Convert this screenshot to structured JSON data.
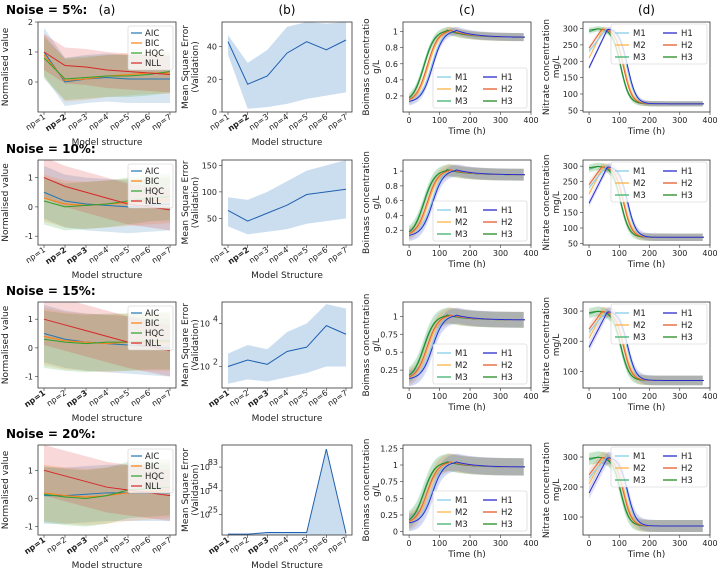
{
  "colors": {
    "AIC": "#1f77b4",
    "BIC": "#ff7f0e",
    "HQC": "#2ca02c",
    "NLL": "#d62728",
    "M1": "#87ceeb",
    "M2": "#ffb347",
    "M3": "#3cb371",
    "H1": "#2b2bcc",
    "H2": "#e65c2e",
    "H3": "#228b22",
    "mse": "#2060b0",
    "mse_band": "#a9c8e6"
  },
  "column_labels": [
    "(a)",
    "(b)",
    "(c)",
    "(d)"
  ],
  "row_labels": [
    "Noise = 5%:",
    "Noise = 10%:",
    "Noise = 15%:",
    "Noise = 20%:"
  ],
  "chart_data": [
    {
      "row": 0,
      "col": 0,
      "type": "line",
      "xlabel": "Model structure",
      "ylabel": "Normalised value",
      "categories": [
        "np=1",
        "np=2",
        "np=3",
        "np=4",
        "np=5",
        "np=6",
        "np=7"
      ],
      "bold": [
        1
      ],
      "ylim": [
        -1,
        2
      ],
      "yticks": [
        0,
        1,
        2
      ],
      "series": [
        {
          "name": "AIC",
          "values": [
            1.0,
            0.0,
            0.1,
            0.15,
            0.1,
            0.1,
            0.1
          ],
          "band": 0.8
        },
        {
          "name": "BIC",
          "values": [
            0.9,
            0.05,
            0.1,
            0.2,
            0.25,
            0.3,
            0.3
          ],
          "band": 0.7
        },
        {
          "name": "HQC",
          "values": [
            0.8,
            0.1,
            0.15,
            0.2,
            0.2,
            0.25,
            0.35
          ],
          "band": 0.7
        },
        {
          "name": "NLL",
          "values": [
            1.0,
            0.55,
            0.5,
            0.4,
            0.35,
            0.3,
            0.25
          ],
          "band": 0.6
        }
      ]
    },
    {
      "row": 0,
      "col": 1,
      "type": "area",
      "xlabel": "Model structure",
      "ylabel": "Mean Square Error (Validation)",
      "categories": [
        "np=1",
        "np=2",
        "np=3",
        "np=4",
        "np=5",
        "np=6",
        "np=7"
      ],
      "bold": [
        1
      ],
      "ylim": [
        0,
        55
      ],
      "yticks": [
        0,
        20,
        40
      ],
      "log": false,
      "values": [
        43,
        17,
        22,
        36,
        43,
        38,
        44
      ],
      "lower": [
        35,
        2,
        3,
        5,
        8,
        10,
        12
      ],
      "upper": [
        47,
        30,
        38,
        52,
        55,
        54,
        55
      ]
    },
    {
      "row": 0,
      "col": 2,
      "type": "line",
      "xlabel": "Time (h)",
      "ylabel": "Boimass concentratio g/L",
      "xlim": [
        -20,
        400
      ],
      "xticks": [
        0,
        100,
        200,
        300,
        400
      ],
      "ylim": [
        0,
        1.12
      ],
      "yticks": [
        0.2,
        0.4,
        0.6,
        0.8,
        1.0
      ],
      "legend": [
        "M1",
        "M2",
        "M3",
        "H1",
        "H2",
        "H3"
      ],
      "kind": "biomass",
      "end": 0.93,
      "peak": 1.02,
      "band": 0.05
    },
    {
      "row": 0,
      "col": 3,
      "type": "line",
      "xlabel": "Time (h)",
      "ylabel": "Nitrate concentration mg/L",
      "xlim": [
        -20,
        400
      ],
      "xticks": [
        0,
        100,
        200,
        300,
        400
      ],
      "ylim": [
        45,
        320
      ],
      "yticks": [
        50,
        100,
        150,
        200,
        250,
        300
      ],
      "legend": [
        "M1",
        "M2",
        "M3",
        "H1",
        "H2",
        "H3"
      ],
      "kind": "nitrate",
      "band": 8
    },
    {
      "row": 1,
      "col": 0,
      "type": "line",
      "xlabel": "Model structure",
      "ylabel": "Normalised value",
      "categories": [
        "np=1",
        "np=2",
        "np=3",
        "np=4",
        "np=5",
        "np=6",
        "np=7"
      ],
      "bold": [
        1,
        2
      ],
      "ylim": [
        -1.3,
        1.6
      ],
      "yticks": [
        -1,
        0,
        1
      ],
      "series": [
        {
          "name": "AIC",
          "values": [
            0.5,
            0.2,
            0.1,
            0.05,
            0.0,
            0.05,
            0.1
          ],
          "band": 0.9
        },
        {
          "name": "BIC",
          "values": [
            0.3,
            0.1,
            0.05,
            0.1,
            0.15,
            0.2,
            0.25
          ],
          "band": 0.8
        },
        {
          "name": "HQC",
          "values": [
            0.2,
            0.0,
            0.05,
            0.1,
            0.2,
            0.3,
            0.35
          ],
          "band": 0.8
        },
        {
          "name": "NLL",
          "values": [
            1.0,
            0.7,
            0.5,
            0.3,
            0.1,
            0.0,
            -0.1
          ],
          "band": 0.7
        }
      ]
    },
    {
      "row": 1,
      "col": 1,
      "type": "area",
      "xlabel": "Model Structure",
      "ylabel": "Mean Square Error (Validation)",
      "categories": [
        "np=1",
        "np=2",
        "np=3",
        "np=4",
        "np=5",
        "np=6",
        "np=7"
      ],
      "bold": [
        1
      ],
      "ylim": [
        0,
        160
      ],
      "yticks": [
        50,
        100,
        150
      ],
      "log": false,
      "values": [
        65,
        45,
        60,
        75,
        95,
        100,
        105
      ],
      "lower": [
        35,
        20,
        25,
        30,
        40,
        45,
        50
      ],
      "upper": [
        90,
        85,
        100,
        120,
        140,
        150,
        160
      ]
    },
    {
      "row": 1,
      "col": 2,
      "type": "line",
      "xlabel": "Time (h)",
      "ylabel": "Boimass concentration g/L",
      "xlim": [
        -20,
        400
      ],
      "xticks": [
        0,
        100,
        200,
        300,
        400
      ],
      "ylim": [
        0,
        1.15
      ],
      "yticks": [
        0.2,
        0.4,
        0.6,
        0.8,
        1.0
      ],
      "legend": [
        "M1",
        "M2",
        "M3",
        "H1",
        "H2",
        "H3"
      ],
      "kind": "biomass",
      "end": 0.95,
      "peak": 1.02,
      "band": 0.08
    },
    {
      "row": 1,
      "col": 3,
      "type": "line",
      "xlabel": "Time (h)",
      "ylabel": "Nitrate concentration mg/L",
      "xlim": [
        -20,
        400
      ],
      "xticks": [
        0,
        100,
        200,
        300,
        400
      ],
      "ylim": [
        45,
        320
      ],
      "yticks": [
        50,
        100,
        150,
        200,
        250,
        300
      ],
      "legend": [
        "M1",
        "M2",
        "M3",
        "H1",
        "H2",
        "H3"
      ],
      "kind": "nitrate",
      "band": 12
    },
    {
      "row": 2,
      "col": 0,
      "type": "line",
      "xlabel": "Model structure",
      "ylabel": "Normalised value",
      "categories": [
        "np=1",
        "np=2",
        "np=3",
        "np=4",
        "np=5",
        "np=6",
        "np=7"
      ],
      "bold": [
        0,
        2
      ],
      "ylim": [
        -1.4,
        1.6
      ],
      "yticks": [
        -1,
        0,
        1
      ],
      "series": [
        {
          "name": "AIC",
          "values": [
            0.5,
            0.3,
            0.2,
            0.15,
            0.1,
            0.05,
            0.0
          ],
          "band": 1.0
        },
        {
          "name": "BIC",
          "values": [
            0.4,
            0.25,
            0.2,
            0.15,
            0.2,
            0.2,
            0.2
          ],
          "band": 1.0
        },
        {
          "name": "HQC",
          "values": [
            0.3,
            0.2,
            0.15,
            0.2,
            0.2,
            0.25,
            0.25
          ],
          "band": 1.0
        },
        {
          "name": "NLL",
          "values": [
            1.0,
            0.8,
            0.6,
            0.4,
            0.2,
            0.05,
            -0.1
          ],
          "band": 0.9
        }
      ]
    },
    {
      "row": 2,
      "col": 1,
      "type": "area",
      "xlabel": "Model structure",
      "ylabel": "Mean Square Error (Validation)",
      "categories": [
        "np=1",
        "np=2",
        "np=3",
        "np=4",
        "np=5",
        "np=6",
        "np=7"
      ],
      "bold": [
        0,
        2
      ],
      "log": true,
      "ylim": [
        1,
        5
      ],
      "yticks": [
        2,
        4
      ],
      "tick_prefix": "10",
      "values": [
        2.0,
        2.3,
        2.1,
        2.7,
        2.9,
        3.9,
        3.5
      ],
      "lower": [
        1.2,
        1.4,
        1.3,
        1.5,
        1.7,
        2.0,
        2.0
      ],
      "upper": [
        2.6,
        3.0,
        2.8,
        3.6,
        4.0,
        4.9,
        4.7
      ]
    },
    {
      "row": 2,
      "col": 2,
      "type": "line",
      "xlabel": "Time (h)",
      "ylabel": "Boimass concentration g/L",
      "xlim": [
        -20,
        400
      ],
      "xticks": [
        0,
        100,
        200,
        300,
        400
      ],
      "ylim": [
        0,
        1.2
      ],
      "yticks": [
        0.25,
        0.5,
        0.75,
        1.0
      ],
      "legend": [
        "M1",
        "M2",
        "M3",
        "H1",
        "H2",
        "H3"
      ],
      "kind": "biomass",
      "end": 0.95,
      "peak": 1.02,
      "band": 0.11
    },
    {
      "row": 2,
      "col": 3,
      "type": "line",
      "xlabel": "Time (h)",
      "ylabel": "Nitrate concentration mg/L",
      "xlim": [
        -20,
        400
      ],
      "xticks": [
        0,
        100,
        200,
        300,
        400
      ],
      "ylim": [
        45,
        330
      ],
      "yticks": [
        100,
        200,
        300
      ],
      "legend": [
        "M1",
        "M2",
        "M3",
        "H1",
        "H2",
        "H3"
      ],
      "kind": "nitrate",
      "band": 16
    },
    {
      "row": 3,
      "col": 0,
      "type": "line",
      "xlabel": "Model structure",
      "ylabel": "Normalised value",
      "categories": [
        "np=1",
        "np=2",
        "np=3",
        "np=4",
        "np=5",
        "np=6",
        "np=7"
      ],
      "bold": [
        0,
        2
      ],
      "ylim": [
        -1.3,
        1.9
      ],
      "yticks": [
        -1,
        0,
        1
      ],
      "series": [
        {
          "name": "AIC",
          "values": [
            0.1,
            0.1,
            0.15,
            0.2,
            0.2,
            0.2,
            0.2
          ],
          "band": 1.0
        },
        {
          "name": "BIC",
          "values": [
            0.2,
            0.1,
            0.05,
            0.1,
            0.2,
            0.25,
            0.3
          ],
          "band": 1.0
        },
        {
          "name": "HQC",
          "values": [
            0.15,
            0.05,
            0.0,
            0.1,
            0.3,
            0.35,
            0.4
          ],
          "band": 1.0
        },
        {
          "name": "NLL",
          "values": [
            1.0,
            0.8,
            0.6,
            0.4,
            0.3,
            0.2,
            0.1
          ],
          "band": 0.9
        }
      ]
    },
    {
      "row": 3,
      "col": 1,
      "type": "area",
      "xlabel": "Model Structure",
      "ylabel": "Mean Square Error (Validation)",
      "categories": [
        "np=1",
        "np=2",
        "np=3",
        "np=4",
        "np=5",
        "np=6",
        "np=7"
      ],
      "bold": [
        0,
        2
      ],
      "log": true,
      "ylim": [
        0,
        110
      ],
      "yticks": [
        25,
        54,
        83
      ],
      "tick_prefix": "10",
      "values": [
        1,
        1,
        3,
        3,
        3,
        105,
        2
      ],
      "lower": [
        0,
        0,
        0,
        0,
        0,
        0,
        0
      ],
      "upper": [
        1,
        1,
        3,
        3,
        3,
        105,
        2
      ]
    },
    {
      "row": 3,
      "col": 2,
      "type": "line",
      "xlabel": "Time (h)",
      "ylabel": "Boimass concentration g/L",
      "xlim": [
        -20,
        400
      ],
      "xticks": [
        0,
        100,
        200,
        300,
        400
      ],
      "ylim": [
        -0.05,
        1.3
      ],
      "yticks": [
        0,
        0.25,
        0.5,
        0.75,
        1.0,
        1.25
      ],
      "legend": [
        "M1",
        "M2",
        "M3",
        "H1",
        "H2",
        "H3"
      ],
      "kind": "biomass",
      "end": 0.97,
      "peak": 1.05,
      "band": 0.13
    },
    {
      "row": 3,
      "col": 3,
      "type": "line",
      "xlabel": "Time (h)",
      "ylabel": "Nitrate concentration mg/L",
      "xlim": [
        -20,
        400
      ],
      "xticks": [
        0,
        100,
        200,
        300,
        400
      ],
      "ylim": [
        40,
        340
      ],
      "yticks": [
        100,
        200,
        300
      ],
      "legend": [
        "M1",
        "M2",
        "M3",
        "H1",
        "H2",
        "H3"
      ],
      "kind": "nitrate",
      "band": 20
    }
  ]
}
